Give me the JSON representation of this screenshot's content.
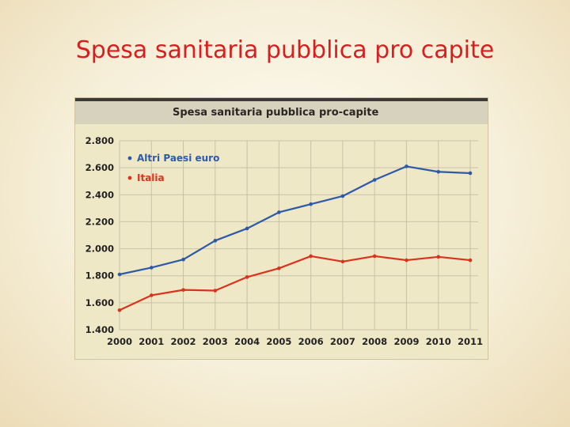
{
  "slide": {
    "title": "Spesa sanitaria pubblica pro capite"
  },
  "chart_data": {
    "type": "line",
    "title": "Spesa sanitaria pubblica pro-capite",
    "x": [
      "2000",
      "2001",
      "2002",
      "2003",
      "2004",
      "2005",
      "2006",
      "2007",
      "2008",
      "2009",
      "2010",
      "2011"
    ],
    "ylim": [
      1400,
      2800
    ],
    "yticks": [
      "1.400",
      "1.600",
      "1.800",
      "2.000",
      "2.200",
      "2.400",
      "2.600",
      "2.800"
    ],
    "yticks_values": [
      1400,
      1600,
      1800,
      2000,
      2200,
      2400,
      2600,
      2800
    ],
    "grid": true,
    "legend_position": "top-left",
    "series": [
      {
        "name": "Altri Paesi euro",
        "color": "#2d5aa8",
        "values": [
          1810,
          1860,
          1920,
          2060,
          2150,
          2270,
          2330,
          2390,
          2510,
          2610,
          2570,
          2560
        ]
      },
      {
        "name": "Italia",
        "color": "#d8331c",
        "values": [
          1545,
          1655,
          1695,
          1690,
          1790,
          1855,
          1945,
          1905,
          1945,
          1915,
          1940,
          1915
        ]
      }
    ]
  }
}
